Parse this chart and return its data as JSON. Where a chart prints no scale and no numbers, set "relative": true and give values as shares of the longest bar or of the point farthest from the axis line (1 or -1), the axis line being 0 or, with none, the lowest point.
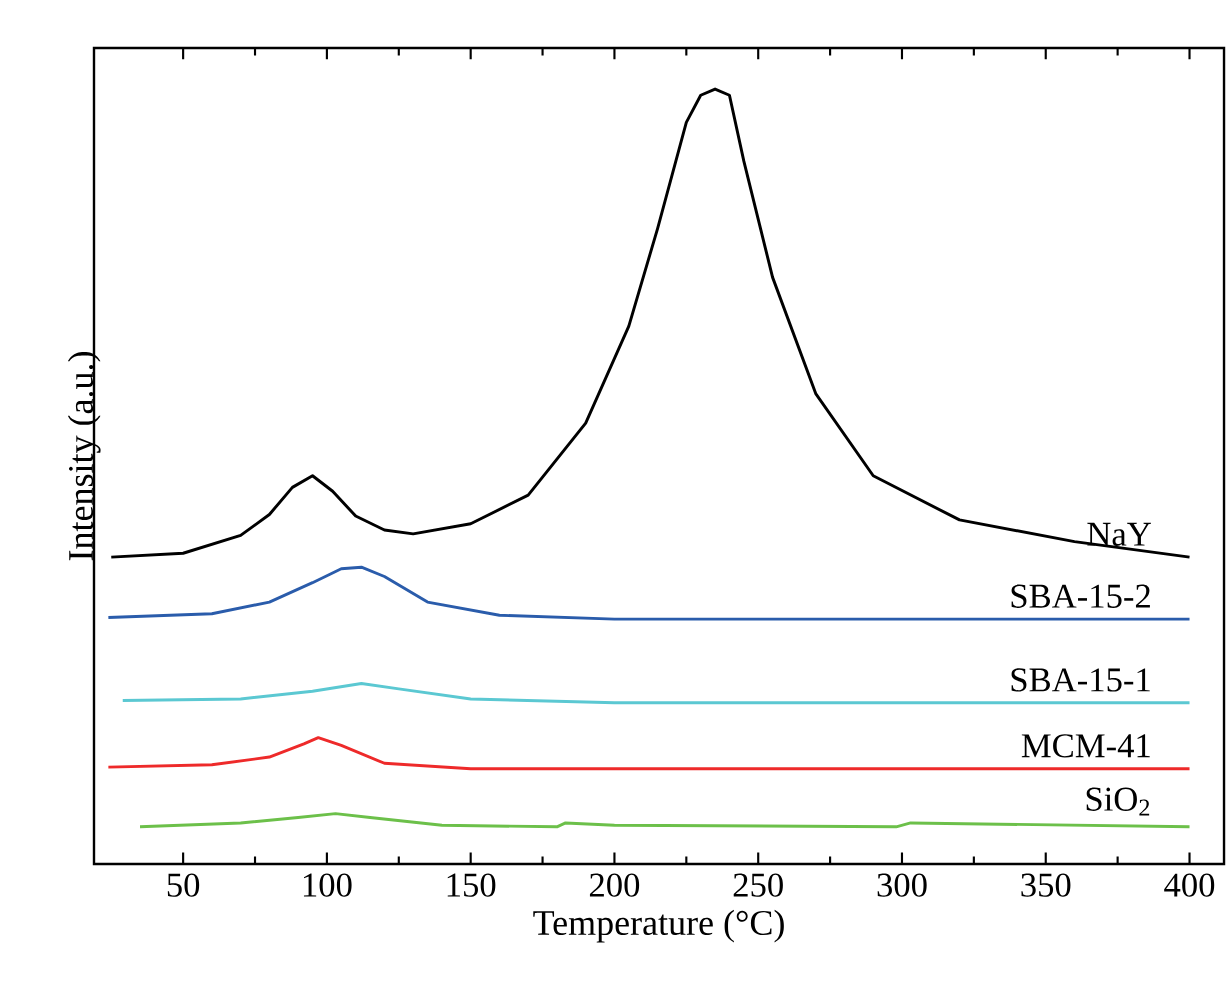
{
  "chart_data": {
    "type": "line",
    "relative": true,
    "xlabel": "Temperature (°C)",
    "ylabel": "Intensity (a.u.)",
    "xlim": [
      19,
      412
    ],
    "xticks": [
      50,
      100,
      150,
      200,
      250,
      300,
      350,
      400
    ],
    "legend": false,
    "grid": false,
    "marker": "none",
    "line_style": "solid",
    "series": [
      {
        "name": "NaY",
        "color": "#000000",
        "x": [
          25,
          50,
          70,
          80,
          88,
          95,
          102,
          110,
          120,
          130,
          150,
          170,
          190,
          205,
          215,
          225,
          230,
          235,
          240,
          245,
          255,
          270,
          290,
          320,
          360,
          400
        ],
        "values": [
          0.396,
          0.401,
          0.424,
          0.451,
          0.486,
          0.501,
          0.481,
          0.449,
          0.431,
          0.426,
          0.439,
          0.476,
          0.569,
          0.694,
          0.82,
          0.957,
          0.992,
          1.0,
          0.992,
          0.907,
          0.757,
          0.607,
          0.501,
          0.444,
          0.416,
          0.396
        ]
      },
      {
        "name": "SBA-15-2",
        "color": "#2a5cab",
        "x": [
          24,
          60,
          80,
          95,
          105,
          112,
          120,
          135,
          160,
          200,
          400
        ],
        "values": [
          0.318,
          0.323,
          0.338,
          0.363,
          0.381,
          0.383,
          0.371,
          0.338,
          0.321,
          0.316,
          0.316
        ]
      },
      {
        "name": "SBA-15-1",
        "color": "#5bc8d2",
        "x": [
          29,
          70,
          95,
          112,
          125,
          150,
          200,
          400
        ],
        "values": [
          0.211,
          0.213,
          0.223,
          0.233,
          0.226,
          0.213,
          0.208,
          0.208
        ]
      },
      {
        "name": "MCM-41",
        "color": "#ee2a2a",
        "x": [
          24,
          60,
          80,
          92,
          97,
          105,
          120,
          150,
          400
        ],
        "values": [
          0.125,
          0.128,
          0.138,
          0.155,
          0.163,
          0.153,
          0.13,
          0.123,
          0.123
        ]
      },
      {
        "name": "SiO$_{2}$",
        "color": "#6cc04a",
        "x": [
          35,
          70,
          90,
          103,
          115,
          140,
          180,
          183,
          200,
          298,
          303,
          400
        ],
        "values": [
          0.048,
          0.053,
          0.06,
          0.065,
          0.06,
          0.05,
          0.048,
          0.053,
          0.05,
          0.048,
          0.053,
          0.048
        ]
      }
    ]
  }
}
